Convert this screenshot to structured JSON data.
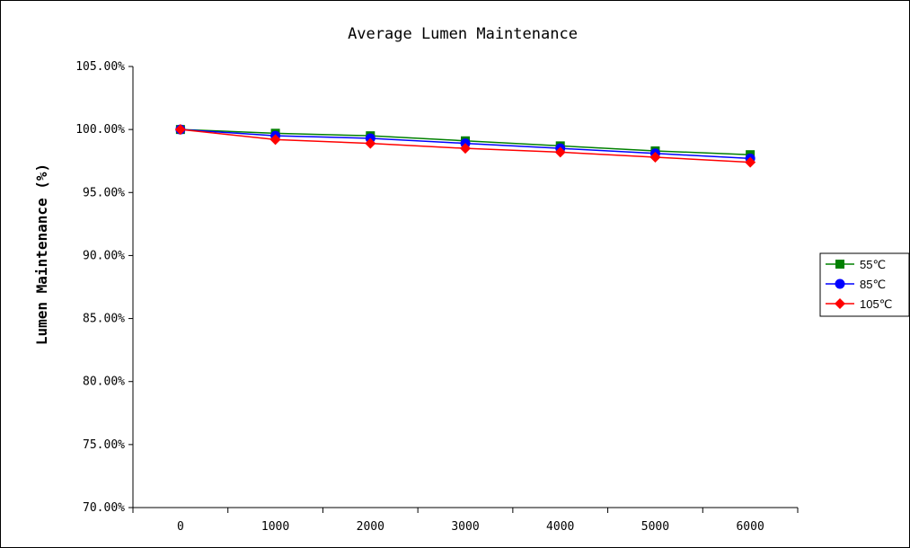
{
  "chart_data": {
    "type": "line",
    "title": "Average Lumen Maintenance",
    "xlabel": "",
    "ylabel": "Lumen Maintenance (%)",
    "x": [
      0,
      1000,
      2000,
      3000,
      4000,
      5000,
      6000
    ],
    "x_tick_labels": [
      "0",
      "1000",
      "2000",
      "3000",
      "4000",
      "5000",
      "6000"
    ],
    "ylim": [
      70,
      105
    ],
    "y_ticks": [
      70,
      75,
      80,
      85,
      90,
      95,
      100,
      105
    ],
    "y_tick_labels": [
      "70.00%",
      "75.00%",
      "80.00%",
      "85.00%",
      "90.00%",
      "95.00%",
      "100.00%",
      "105.00%"
    ],
    "grid": false,
    "legend_position": "right",
    "series": [
      {
        "name": "55℃",
        "color": "#008000",
        "marker": "square",
        "values": [
          100.0,
          99.7,
          99.5,
          99.1,
          98.7,
          98.3,
          98.0
        ]
      },
      {
        "name": "85℃",
        "color": "#0000ff",
        "marker": "circle",
        "values": [
          100.0,
          99.5,
          99.3,
          98.9,
          98.5,
          98.1,
          97.7
        ]
      },
      {
        "name": "105℃",
        "color": "#ff0000",
        "marker": "diamond",
        "values": [
          100.0,
          99.2,
          98.9,
          98.5,
          98.2,
          97.8,
          97.4
        ]
      }
    ]
  }
}
